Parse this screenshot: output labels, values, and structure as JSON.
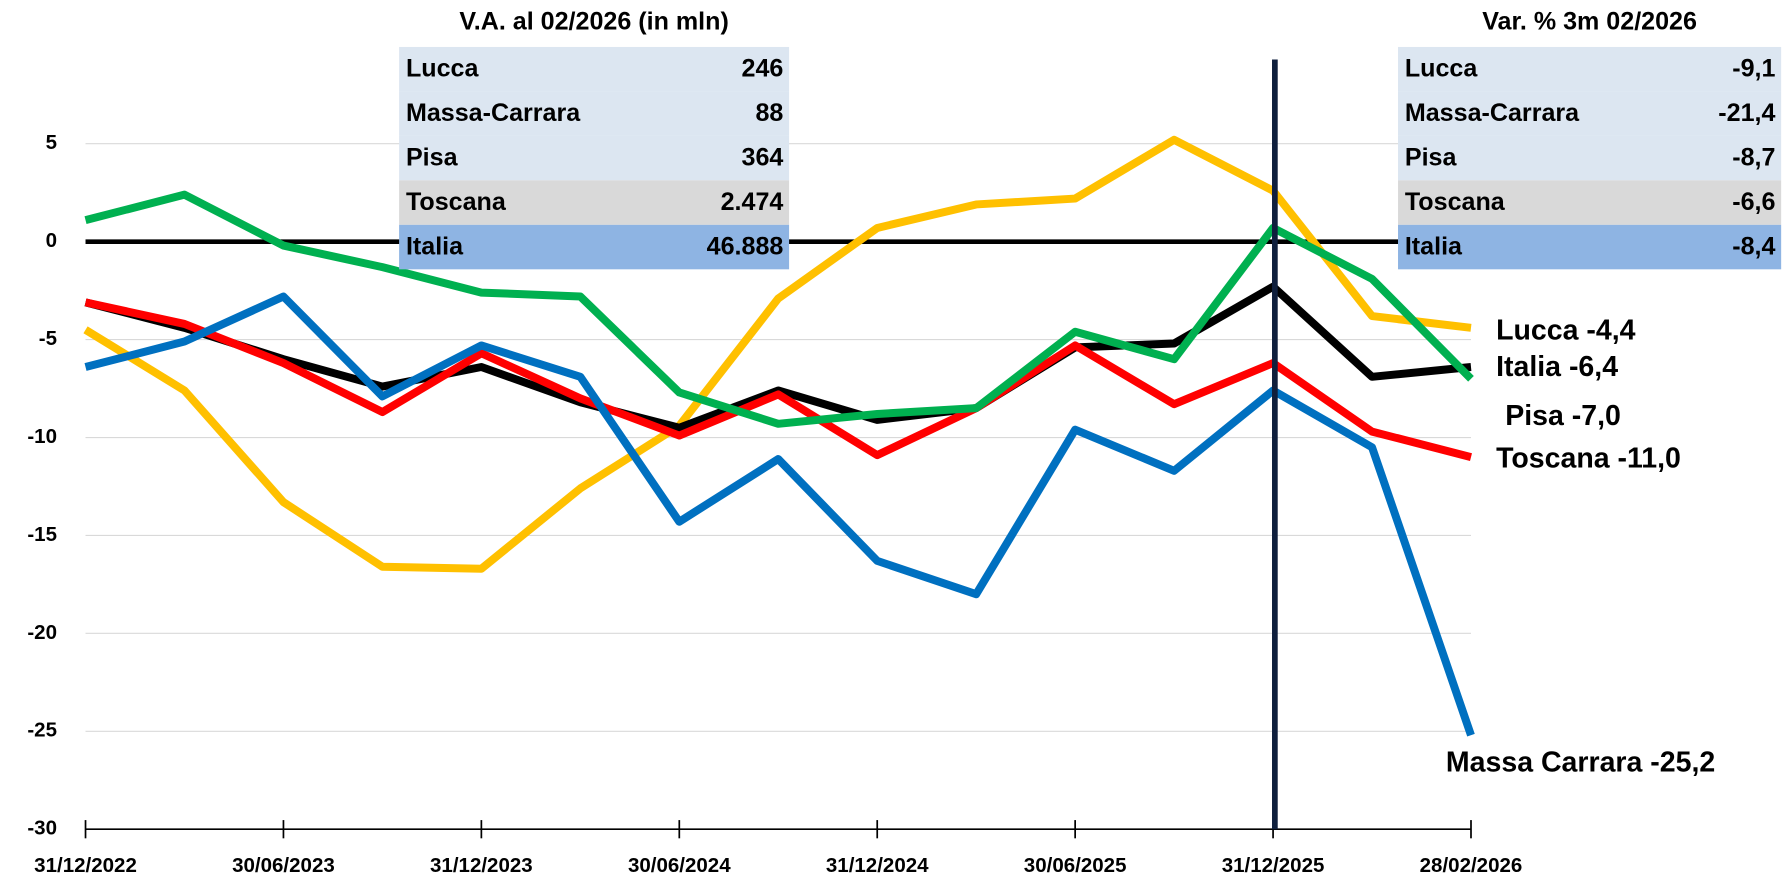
{
  "chart_data": {
    "type": "line",
    "categories": [
      "31/12/2022",
      null,
      "30/06/2023",
      null,
      "31/12/2023",
      null,
      "30/06/2024",
      null,
      "31/12/2024",
      null,
      "30/06/2025",
      null,
      "31/12/2025",
      null,
      "28/02/2026"
    ],
    "series": [
      {
        "name": "Lucca",
        "color": "#ffc000",
        "end_label": "Lucca -4,4",
        "values": [
          -4.5,
          -7.6,
          -13.3,
          -16.6,
          -16.7,
          -12.6,
          -9.4,
          -2.9,
          0.7,
          1.9,
          2.2,
          5.2,
          2.6,
          -3.8,
          -4.4
        ]
      },
      {
        "name": "Italia",
        "color": "#000000",
        "end_label": "Italia -6,4",
        "values": [
          -3.1,
          -4.4,
          -6.0,
          -7.4,
          -6.4,
          -8.2,
          -9.5,
          -7.6,
          -9.1,
          -8.5,
          -5.4,
          -5.2,
          -2.3,
          -6.9,
          -6.4
        ]
      },
      {
        "name": "Toscana",
        "color": "#ff0000",
        "end_label": "Toscana -11,0",
        "values": [
          -3.1,
          -4.2,
          -6.2,
          -8.7,
          -5.7,
          -8.0,
          -9.9,
          -7.8,
          -10.9,
          -8.5,
          -5.3,
          -8.3,
          -6.2,
          -9.7,
          -11.0
        ]
      },
      {
        "name": "Massa-Carrara",
        "color": "#0070c0",
        "end_label": "Massa Carrara -25,2",
        "values": [
          -6.4,
          -5.1,
          -2.8,
          -7.9,
          -5.3,
          -6.9,
          -14.3,
          -11.1,
          -16.3,
          -18.0,
          -9.6,
          -11.7,
          -7.6,
          -10.5,
          -25.2
        ]
      },
      {
        "name": "Pisa",
        "color": "#00b050",
        "end_label": "Pisa -7,0",
        "values": [
          1.1,
          2.4,
          -0.2,
          -1.3,
          -2.6,
          -2.8,
          -7.7,
          -9.3,
          -8.8,
          -8.5,
          -4.6,
          -6.0,
          0.7,
          -1.9,
          -7.0
        ]
      }
    ],
    "ylim": [
      -30,
      10
    ],
    "yticks": [
      -30,
      -25,
      -20,
      -15,
      -10,
      -5,
      0,
      5
    ],
    "grid": true
  },
  "tables": [
    {
      "title": "V.A. al 02/2026 (in mln)",
      "rows": [
        [
          "Lucca",
          "246"
        ],
        [
          "Massa-Carrara",
          "88"
        ],
        [
          "Pisa",
          "364"
        ],
        [
          "Toscana",
          "2.474"
        ],
        [
          "Italia",
          "46.888"
        ]
      ]
    },
    {
      "title": "Var. % 3m 02/2026",
      "rows": [
        [
          "Lucca",
          "-9,1"
        ],
        [
          "Massa-Carrara",
          "-21,4"
        ],
        [
          "Pisa",
          "-8,7"
        ],
        [
          "Toscana",
          "-6,6"
        ],
        [
          "Italia",
          "-8,4"
        ]
      ]
    }
  ]
}
